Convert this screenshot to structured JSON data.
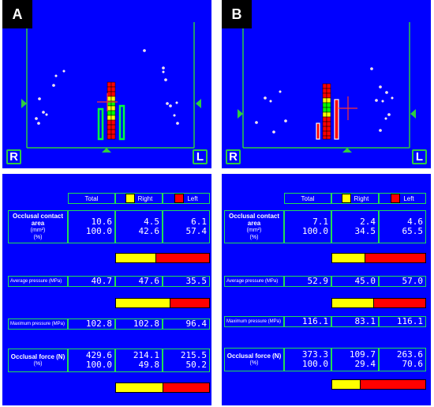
{
  "colors": {
    "background": "#0000ff",
    "right": "#ffff00",
    "left": "#ff0000",
    "grid_line": "#2ecc40"
  },
  "panels": [
    {
      "letter": "A",
      "side_right": "R",
      "side_left": "L",
      "header": {
        "total": "Total",
        "right": "Right",
        "left": "Left"
      },
      "area": {
        "label": "Occlusal contact area",
        "unit": "(mm²)",
        "pct": "(%)",
        "total": "10.6",
        "total_pct": "100.0",
        "right": "4.5",
        "right_pct": "42.6",
        "left": "6.1",
        "left_pct": "57.4"
      },
      "area_bar_right_fraction": 0.426,
      "avg": {
        "label": "Average pressure (MPa)",
        "total": "40.7",
        "right": "47.6",
        "left": "35.5"
      },
      "avg_bar_right_fraction": 0.573,
      "max": {
        "label": "Maximum pressure (MPa)",
        "total": "102.8",
        "right": "102.8",
        "left": "96.4"
      },
      "force": {
        "label": "Occlusal force (N)",
        "pct": "(%)",
        "total": "429.6",
        "total_pct": "100.0",
        "right": "214.1",
        "right_pct": "49.8",
        "left": "215.5",
        "left_pct": "50.2"
      },
      "force_bar_right_fraction": 0.498
    },
    {
      "letter": "B",
      "side_right": "R",
      "side_left": "L",
      "header": {
        "total": "Total",
        "right": "Right",
        "left": "Left"
      },
      "area": {
        "label": "Occlusal contact area",
        "unit": "(mm²)",
        "pct": "(%)",
        "total": "7.1",
        "total_pct": "100.0",
        "right": "2.4",
        "right_pct": "34.5",
        "left": "4.6",
        "left_pct": "65.5"
      },
      "area_bar_right_fraction": 0.345,
      "avg": {
        "label": "Average pressure (MPa)",
        "total": "52.9",
        "right": "45.0",
        "left": "57.0"
      },
      "avg_bar_right_fraction": 0.441,
      "max": {
        "label": "Maximum pressure (MPa)",
        "total": "116.1",
        "right": "83.1",
        "left": "116.1"
      },
      "force": {
        "label": "Occlusal force (N)",
        "pct": "(%)",
        "total": "373.3",
        "total_pct": "100.0",
        "right": "109.7",
        "right_pct": "29.4",
        "left": "263.6",
        "left_pct": "70.6"
      },
      "force_bar_right_fraction": 0.294
    }
  ]
}
